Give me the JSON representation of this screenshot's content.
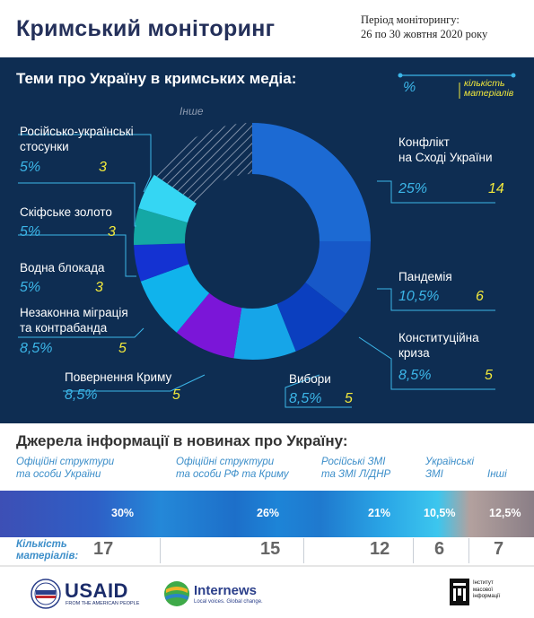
{
  "header": {
    "title": "Кримський моніторинг",
    "period_line1": "Період моніторингу:",
    "period_line2": "26 по 30 жовтня  2020 року"
  },
  "chart_data": [
    {
      "type": "pie",
      "title": "Теми про Україну в кримських медіа:",
      "legend": {
        "percent": "%",
        "count_label_1": "кількість",
        "count_label_2": "матеріалів"
      },
      "slices": [
        {
          "label": [
            "Конфлікт",
            "на Сході України"
          ],
          "percent": "25%",
          "count": "14",
          "value": 25,
          "color": "#1c6ad3"
        },
        {
          "label": [
            "Пандемія"
          ],
          "percent": "10,5%",
          "count": "6",
          "value": 10.5,
          "color": "#1758c8"
        },
        {
          "label": [
            "Конституційна",
            "криза"
          ],
          "percent": "8,5%",
          "count": "5",
          "value": 8.5,
          "color": "#0b3fbf"
        },
        {
          "label": [
            "Вибори"
          ],
          "percent": "8,5%",
          "count": "5",
          "value": 8.5,
          "color": "#16a5e8"
        },
        {
          "label": [
            "Повернення Криму"
          ],
          "percent": "8,5%",
          "count": "5",
          "value": 8.5,
          "color": "#7b16d8"
        },
        {
          "label": [
            "Незаконна міграція",
            "та контрабанда"
          ],
          "percent": "8,5%",
          "count": "5",
          "value": 8.5,
          "color": "#10b3ec"
        },
        {
          "label": [
            "Водна блокада"
          ],
          "percent": "5%",
          "count": "3",
          "value": 5,
          "color": "#1432d2"
        },
        {
          "label": [
            "Скіфське золото"
          ],
          "percent": "5%",
          "count": "3",
          "value": 5,
          "color": "#14a8a5"
        },
        {
          "label": [
            "Російсько-українські",
            "стосунки"
          ],
          "percent": "5%",
          "count": "3",
          "value": 5,
          "color": "#35d6f3"
        },
        {
          "label": [
            "Інше"
          ],
          "percent": "",
          "count": "",
          "value": 15.5,
          "color": "hatch"
        }
      ]
    },
    {
      "type": "bar",
      "title": "Джерела інформації в новинах про Україну:",
      "count_label": [
        "Кількість",
        "матеріалів:"
      ],
      "sources": [
        {
          "label": [
            "Офіційні структури",
            "та особи України"
          ],
          "percent": "30%",
          "count": "17"
        },
        {
          "label": [
            "Офіційні структури",
            "та особи РФ та Криму"
          ],
          "percent": "26%",
          "count": "15"
        },
        {
          "label": [
            "Російські ЗМІ",
            "та ЗМІ Л/ДНР"
          ],
          "percent": "21%",
          "count": "12"
        },
        {
          "label": [
            "Українські",
            "ЗМІ"
          ],
          "percent": "10,5%",
          "count": "6"
        },
        {
          "label": [
            "Інші"
          ],
          "percent": "12,5%",
          "count": "7"
        }
      ]
    }
  ],
  "footer": {
    "usaid_name": "USAID",
    "usaid_tagline": "FROM THE AMERICAN PEOPLE",
    "internews_name": "Internews",
    "internews_tagline": "Local voices. Global change.",
    "imi_lines": [
      "Інститут",
      "масової",
      "інформації"
    ]
  },
  "colors": {
    "dark_bg": "#0e2d52",
    "percent_blue": "#3cb6e8",
    "count_yellow": "#f2e93c",
    "title_navy": "#24305a"
  }
}
